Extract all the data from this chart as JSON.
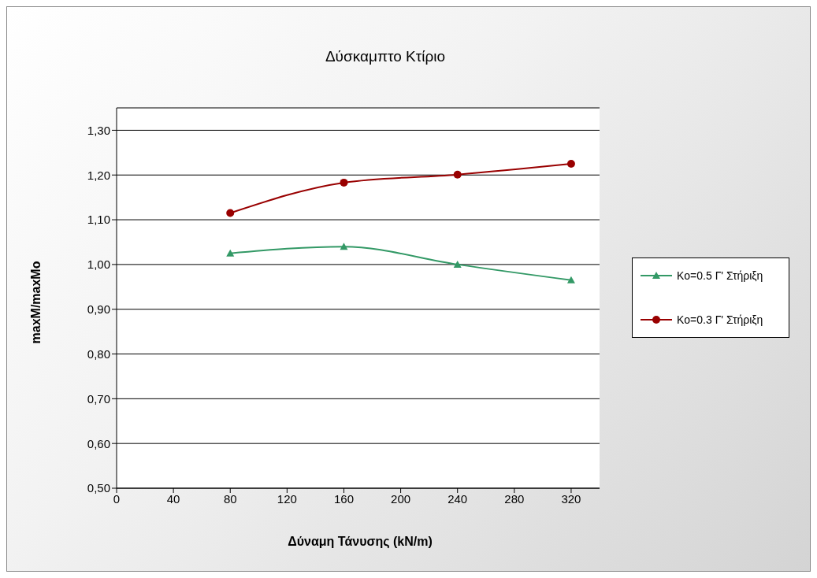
{
  "chart_data": {
    "type": "line",
    "title": "Δύσκαμπτο Κτίριο",
    "xlabel": "Δύναμη Τάνυσης (kN/m)",
    "ylabel": "maxM/maxMo",
    "x": [
      80,
      160,
      240,
      320
    ],
    "series": [
      {
        "name": "Ko=0.5 Γ' Στήριξη",
        "color": "#339966",
        "marker": "triangle",
        "values": [
          1.025,
          1.04,
          1.0,
          0.965
        ]
      },
      {
        "name": "Ko=0.3 Γ' Στήριξη",
        "color": "#990000",
        "marker": "circle",
        "values": [
          1.115,
          1.183,
          1.201,
          1.225
        ]
      }
    ],
    "xlim": [
      0,
      340
    ],
    "xticks": [
      0,
      40,
      80,
      120,
      160,
      200,
      240,
      280,
      320
    ],
    "ylim": [
      0.5,
      1.35
    ],
    "yticks": [
      {
        "value": 0.5,
        "label": "0,50"
      },
      {
        "value": 0.6,
        "label": "0,60"
      },
      {
        "value": 0.7,
        "label": "0,70"
      },
      {
        "value": 0.8,
        "label": "0,80"
      },
      {
        "value": 0.9,
        "label": "0,90"
      },
      {
        "value": 1.0,
        "label": "1,00"
      },
      {
        "value": 1.1,
        "label": "1,10"
      },
      {
        "value": 1.2,
        "label": "1,20"
      },
      {
        "value": 1.3,
        "label": "1,30"
      }
    ],
    "grid": "y",
    "legend": "right",
    "line_style": "solid"
  }
}
